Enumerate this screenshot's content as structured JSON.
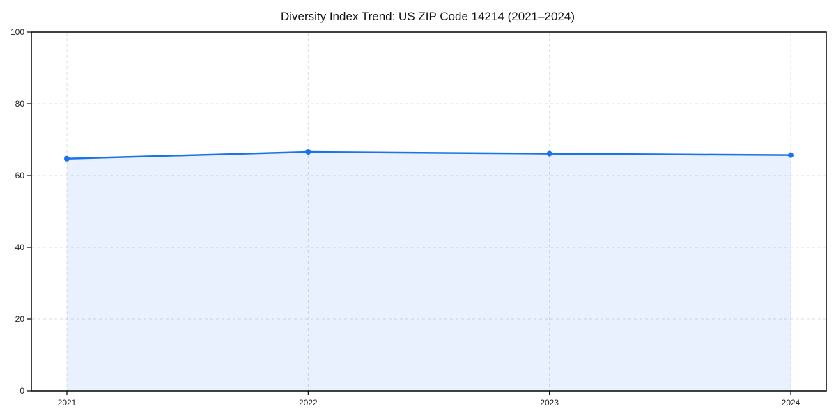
{
  "title": "Diversity Index Trend: US ZIP Code 14214 (2021–2024)",
  "colors": {
    "line": "#1a73e8",
    "marker": "#1a73e8",
    "fill": "rgba(26,115,232,0.10)",
    "grid": "#dcdcdc",
    "axis": "#000000",
    "title_text": "#111111",
    "tick_text": "#222222",
    "background": "#ffffff"
  },
  "chart_data": {
    "type": "area",
    "x": [
      "2021",
      "2022",
      "2023",
      "2024"
    ],
    "values": [
      64.7,
      66.6,
      66.1,
      65.7
    ],
    "series_name": "Diversity Index",
    "title": "Diversity Index Trend: US ZIP Code 14214 (2021–2024)",
    "xlabel": "",
    "ylabel": "",
    "ylim": [
      0,
      100
    ],
    "yticks": [
      0,
      20,
      40,
      60,
      80,
      100
    ],
    "grid": true,
    "grid_style": "dashed",
    "legend_position": "none",
    "marker": "circle",
    "fill_between_first_and_last_point_only": true
  }
}
